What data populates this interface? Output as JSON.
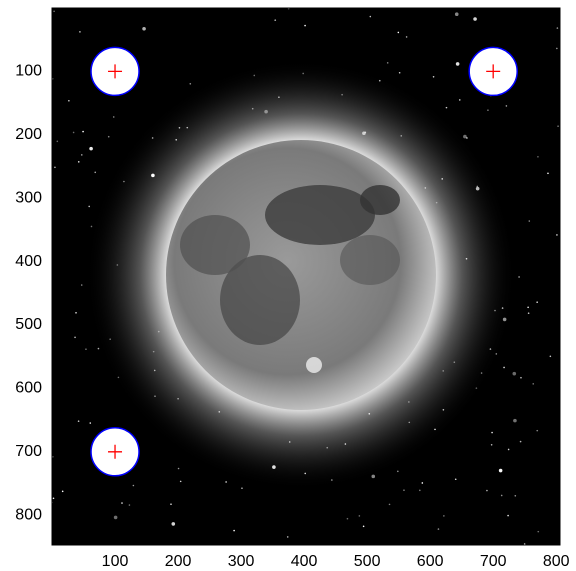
{
  "chart_data": {
    "type": "scatter",
    "x": [
      100,
      700,
      100
    ],
    "values": [
      100,
      100,
      700
    ],
    "color": "#ff0000",
    "xlim": [
      0,
      806
    ],
    "ylim": [
      0,
      847
    ],
    "y_reversed": true,
    "xticks": [
      100,
      200,
      300,
      400,
      500,
      600,
      700,
      800
    ],
    "yticks": [
      100,
      200,
      300,
      400,
      500,
      600,
      700,
      800
    ]
  }
}
